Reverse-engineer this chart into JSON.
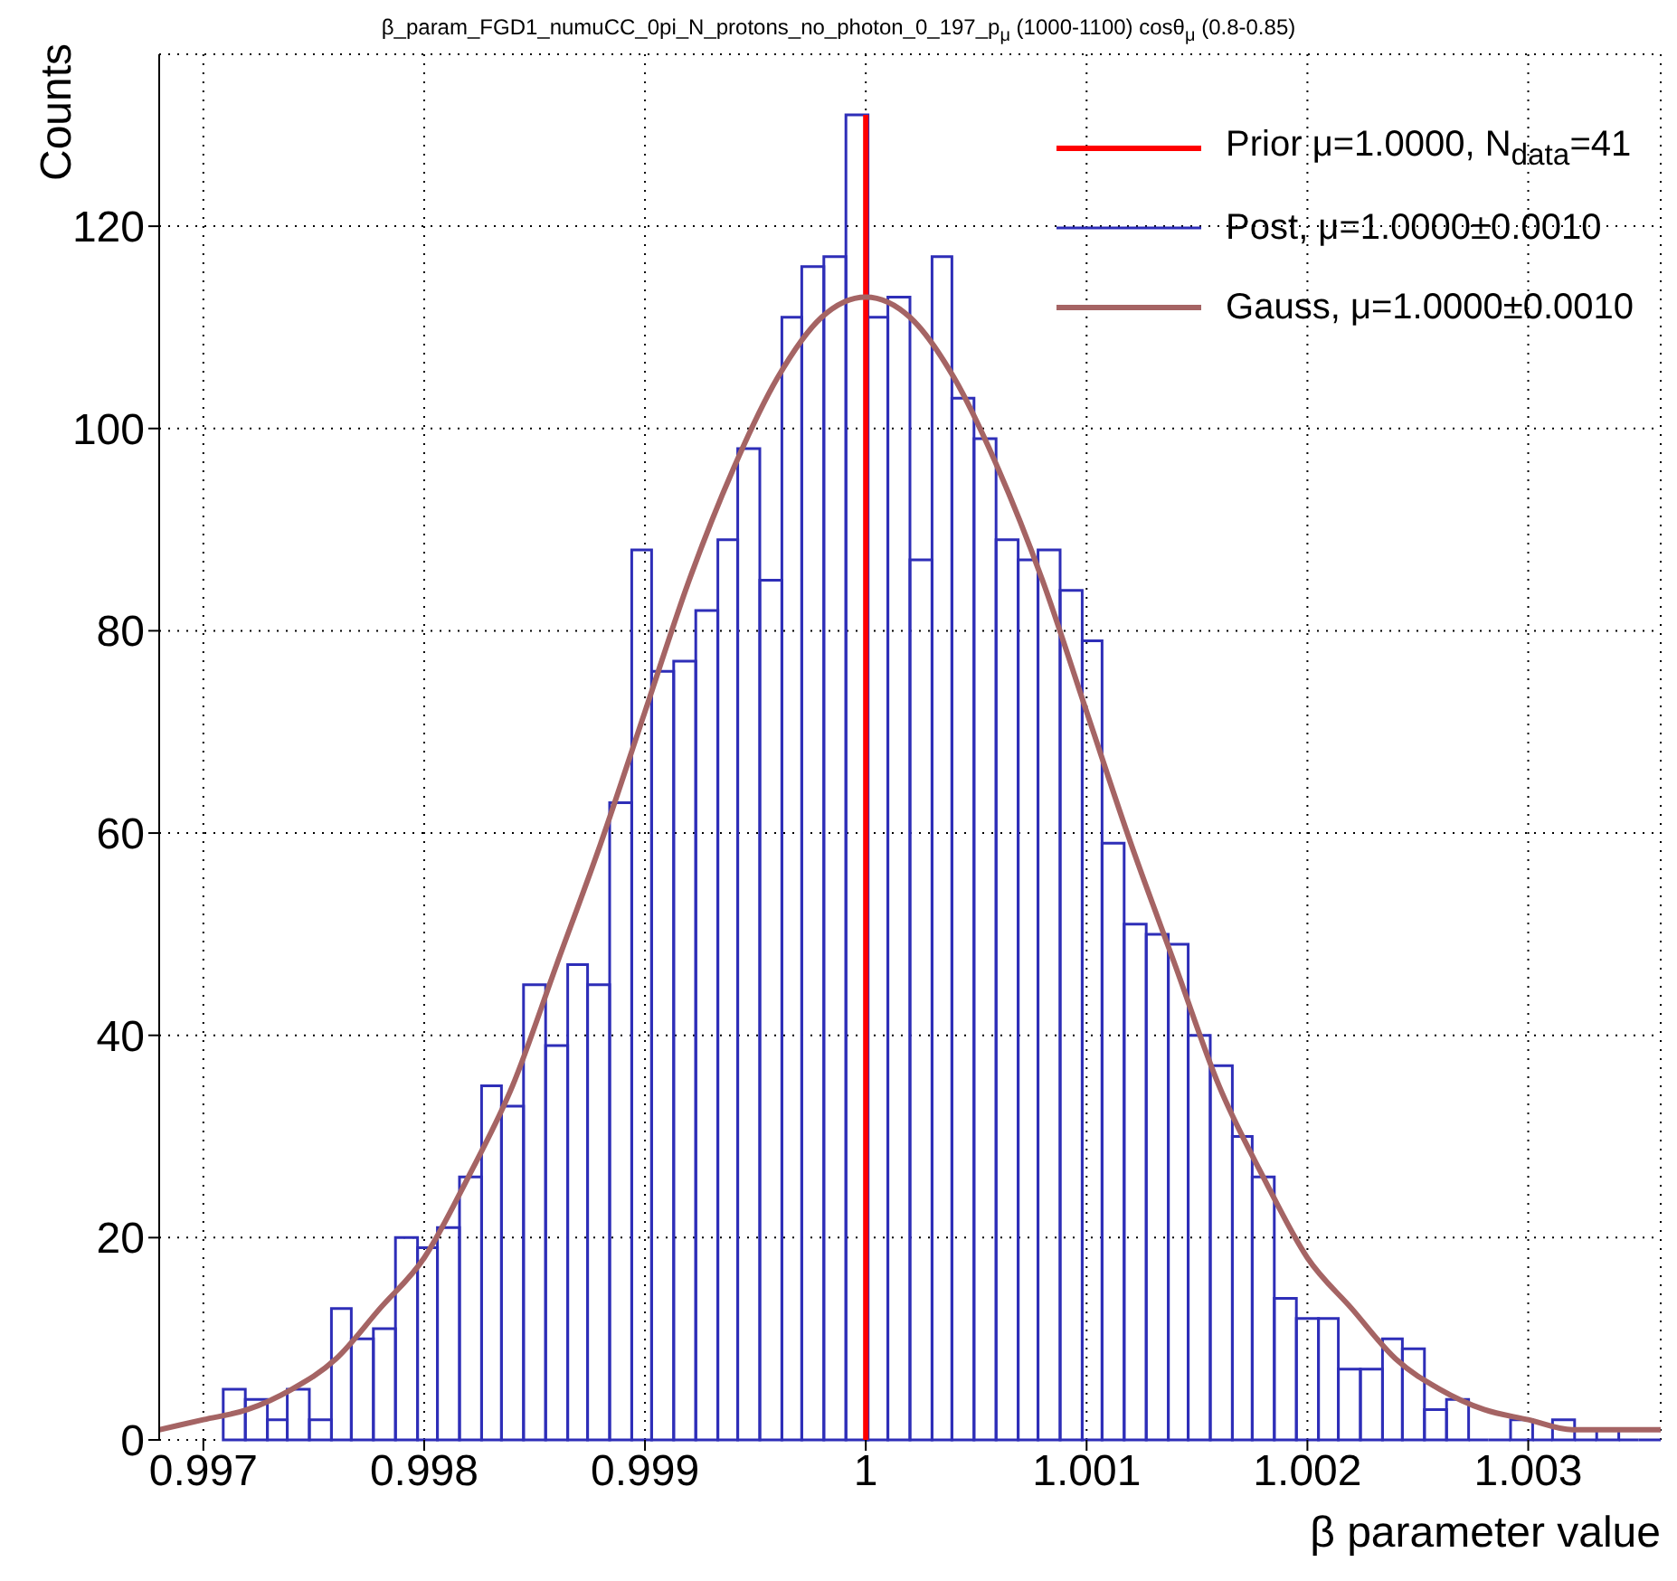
{
  "chart_data": {
    "type": "histogram",
    "title": "β_param_FGD1_numuCC_0pi_N_protons_no_photon_0_197_p$_{μ}$ (1000-1100) cosθ$_{μ}$ (0.8-0.85)",
    "xlabel": "β parameter value",
    "ylabel": "Counts",
    "bins": [
      0.99709,
      0.99719,
      0.99729,
      0.99738,
      0.99748,
      0.99758,
      0.99767,
      0.99777,
      0.99787,
      0.99797,
      0.99806,
      0.99816,
      0.99826,
      0.99835,
      0.99845,
      0.99855,
      0.99865,
      0.99874,
      0.99884,
      0.99894,
      0.99903,
      0.99913,
      0.99923,
      0.99933,
      0.99942,
      0.99952,
      0.99962,
      0.99971,
      0.99981,
      0.99991,
      1.00001,
      1.0001,
      1.0002,
      1.0003,
      1.00039,
      1.00049,
      1.00059,
      1.00069,
      1.00078,
      1.00088,
      1.00098,
      1.00107,
      1.00117,
      1.00127,
      1.00137,
      1.00146,
      1.00156,
      1.00166,
      1.00175,
      1.00185,
      1.00195,
      1.00205,
      1.00214,
      1.00224,
      1.00234,
      1.00243,
      1.00253,
      1.00263,
      1.00273,
      1.00282,
      1.00292,
      1.00302,
      1.00311,
      1.00321,
      1.00331,
      1.00341,
      1.0035,
      1.0036
    ],
    "series": [
      {
        "name": "Prior μ=1.0000, N$_{data}$=41",
        "type": "line",
        "color": "#ff0000",
        "x": [
          1,
          1
        ],
        "values": [
          0,
          131
        ]
      },
      {
        "name": "Post, μ=1.0000±0.0010",
        "type": "histogram",
        "color": "#2e2eb8",
        "values": [
          5,
          4,
          2,
          5,
          2,
          13,
          10,
          11,
          20,
          19,
          21,
          26,
          35,
          33,
          45,
          39,
          47,
          45,
          63,
          88,
          76,
          77,
          82,
          89,
          98,
          85,
          111,
          116,
          117,
          131,
          111,
          113,
          87,
          117,
          103,
          99,
          89,
          87,
          88,
          84,
          79,
          59,
          51,
          50,
          49,
          40,
          37,
          30,
          26,
          14,
          12,
          12,
          7,
          7,
          10,
          9,
          3,
          4,
          0,
          0,
          2,
          0,
          2,
          0,
          1,
          0,
          0
        ]
      },
      {
        "name": "Gauss, μ=1.0000±0.0010",
        "type": "line",
        "color": "#a56464",
        "x": [
          0.9968,
          0.997,
          0.9972,
          0.9974,
          0.9976,
          0.9978,
          0.998,
          0.9982,
          0.9984,
          0.9986,
          0.9988,
          0.999,
          0.9992,
          0.9994,
          0.9996,
          0.9998,
          1,
          1.0002,
          1.0004,
          1.0006,
          1.0008,
          1.001,
          1.0012,
          1.0014,
          1.0016,
          1.0018,
          1.002,
          1.0022,
          1.0024,
          1.0026,
          1.0028,
          1.003,
          1.0032,
          1.0034,
          1.0036
        ],
        "values": [
          1,
          2,
          3,
          5,
          8,
          13,
          18,
          26,
          35,
          47,
          59,
          72,
          85,
          96,
          105,
          111,
          113,
          111,
          105,
          96,
          85,
          72,
          59,
          47,
          35,
          26,
          18,
          13,
          8,
          5,
          3,
          2,
          1,
          1,
          1
        ]
      }
    ],
    "xlim": [
      0.9968,
      1.0036
    ],
    "xticks": [
      0.997,
      0.998,
      0.999,
      1,
      1.001,
      1.002,
      1.003
    ],
    "ylim": [
      0,
      137
    ],
    "yticks": [
      0,
      20,
      40,
      60,
      80,
      100,
      120
    ],
    "grid": true,
    "legend": "top right"
  }
}
